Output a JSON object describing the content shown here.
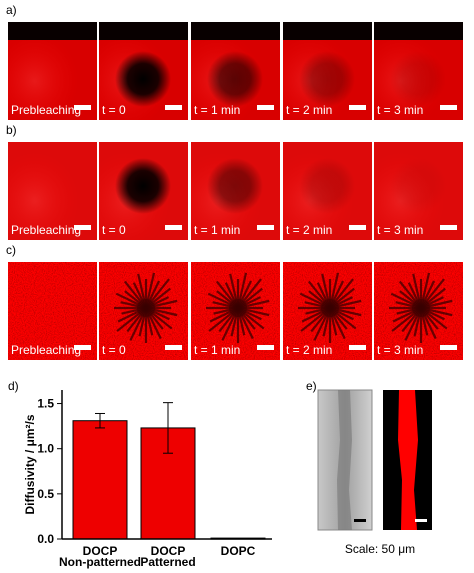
{
  "panels": [
    {
      "label": "a)",
      "frames": [
        "Prebleaching",
        "t = 0",
        "t = 1 min",
        "t = 2 min",
        "t = 3 min"
      ]
    },
    {
      "label": "b)",
      "frames": [
        "Prebleaching",
        "t = 0",
        "t = 1 min",
        "t = 2 min",
        "t = 3 min"
      ]
    },
    {
      "label": "c)",
      "frames": [
        "Prebleaching",
        "t = 0",
        "t = 1 min",
        "t = 2 min",
        "t = 3 min"
      ]
    }
  ],
  "chart_data": {
    "type": "bar",
    "panel_label": "d)",
    "y_label": "Diffusivity / μm²/s",
    "categories": [
      "DOCP",
      "DOCP",
      "DOPC"
    ],
    "category_sublabels": [
      "Non-patterned",
      "Patterned",
      null
    ],
    "values": [
      1.31,
      1.23,
      0.01
    ],
    "errors": [
      0.08,
      0.28,
      0
    ],
    "color": "#ee0000",
    "ylim": [
      0,
      1.65
    ],
    "yticks": [
      {
        "value": 0,
        "label": "0.0"
      },
      {
        "value": 0.5,
        "label": "0.5"
      },
      {
        "value": 1,
        "label": "1.0"
      },
      {
        "value": 1.5,
        "label": "1.5"
      }
    ]
  },
  "panel_e": {
    "label": "e)",
    "caption": "Scale: 50 μm"
  }
}
